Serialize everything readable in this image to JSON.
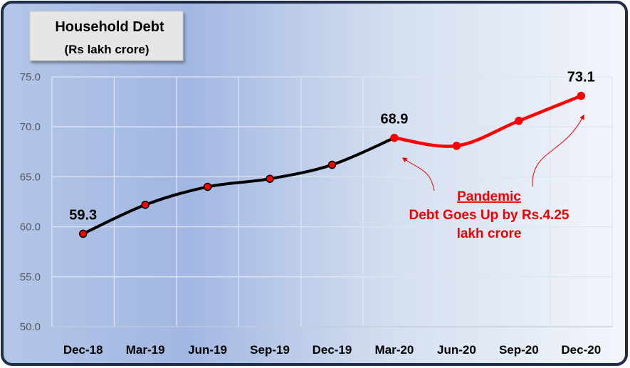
{
  "chart_data": {
    "type": "line",
    "title": "Household Debt",
    "subtitle": "(Rs lakh crore)",
    "categories": [
      "Dec-18",
      "Mar-19",
      "Jun-19",
      "Sep-19",
      "Dec-19",
      "Mar-20",
      "Jun-20",
      "Sep-20",
      "Dec-20"
    ],
    "series": [
      {
        "values": [
          59.3,
          62.2,
          64.0,
          64.8,
          66.2,
          68.9,
          68.1,
          70.6,
          73.1
        ]
      }
    ],
    "ylim": [
      50,
      75
    ],
    "yticks": [
      "50.0",
      "55.0",
      "60.0",
      "65.0",
      "70.0",
      "75.0"
    ],
    "grid": true,
    "data_labels": [
      {
        "index": 0,
        "text": "59.3"
      },
      {
        "index": 5,
        "text": "68.9"
      },
      {
        "index": 8,
        "text": "73.1"
      }
    ],
    "annotation": {
      "heading": "Pandemic",
      "line1": "Debt Goes Up by Rs.4.25",
      "line2": "lakh crore"
    },
    "colors": {
      "pre_pandemic_line": "#000000",
      "pandemic_line": "#ff0000",
      "marker_fill": "#ff0000",
      "annotation": "#ee0000",
      "frame": "#1f2d4a"
    }
  }
}
